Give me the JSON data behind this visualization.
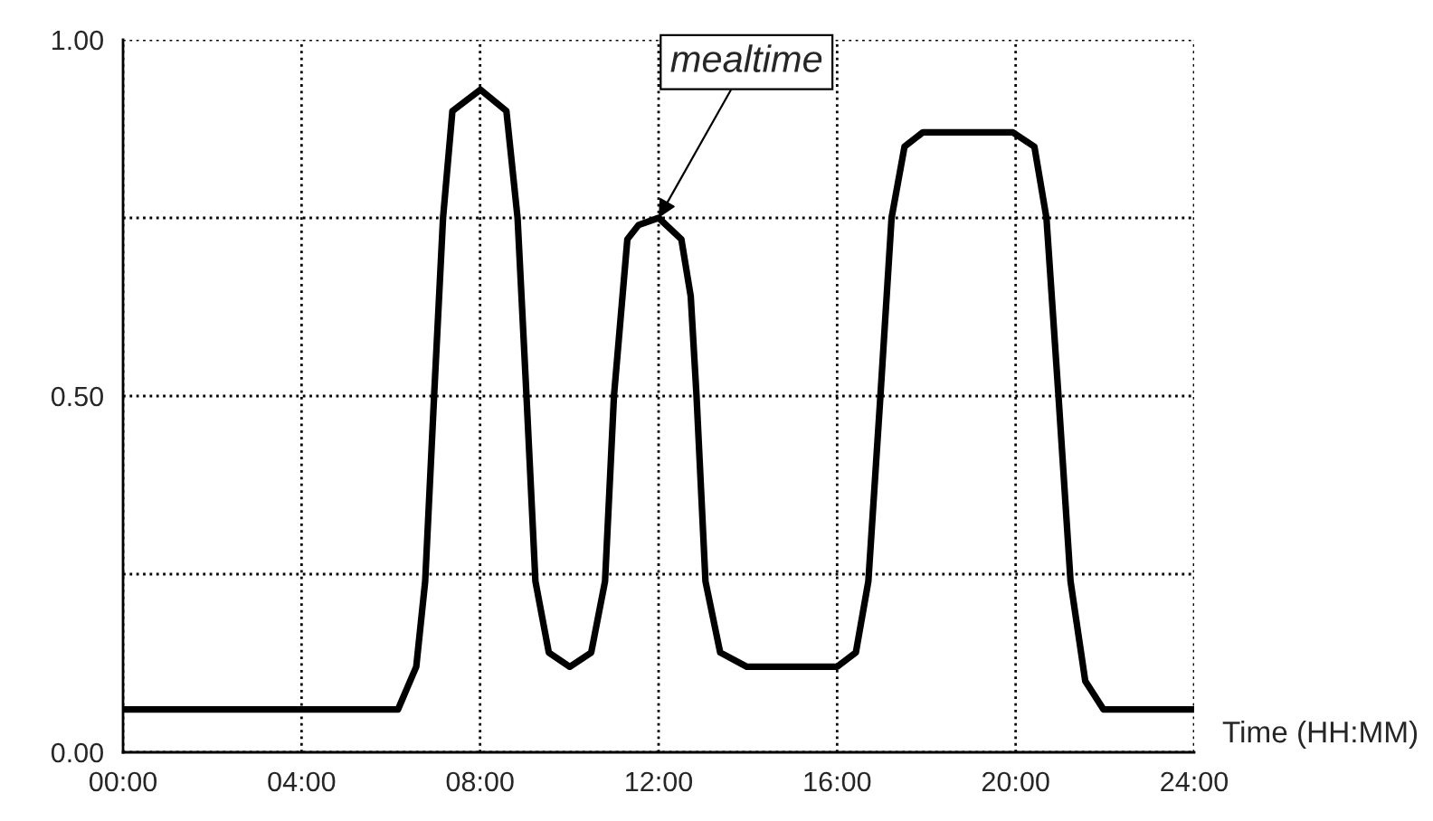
{
  "chart_data": {
    "type": "line",
    "xlabel": "Time (HH:MM)",
    "x": [
      0,
      6.16,
      6.57,
      6.77,
      6.97,
      7.17,
      7.38,
      8.01,
      8.59,
      8.84,
      9.04,
      9.24,
      9.54,
      10.01,
      10.49,
      10.8,
      11.0,
      11.3,
      11.55,
      12.0,
      12.51,
      12.72,
      12.85,
      13.05,
      13.38,
      13.98,
      16.0,
      16.42,
      16.7,
      16.97,
      17.22,
      17.51,
      17.92,
      19.94,
      20.42,
      20.69,
      20.96,
      21.23,
      21.56,
      21.97,
      24
    ],
    "series": [
      {
        "color": "#000000",
        "values": [
          0.06,
          0.06,
          0.12,
          0.24,
          0.5,
          0.75,
          0.9,
          0.93,
          0.9,
          0.75,
          0.5,
          0.24,
          0.14,
          0.12,
          0.14,
          0.24,
          0.5,
          0.72,
          0.74,
          0.75,
          0.72,
          0.64,
          0.5,
          0.24,
          0.14,
          0.12,
          0.12,
          0.14,
          0.24,
          0.5,
          0.75,
          0.85,
          0.87,
          0.87,
          0.85,
          0.75,
          0.5,
          0.24,
          0.1,
          0.06,
          0.06
        ]
      }
    ],
    "xlim": [
      0,
      24
    ],
    "ylim": [
      0,
      1
    ],
    "xticks": [
      {
        "value": 0,
        "label": "00:00"
      },
      {
        "value": 4,
        "label": "04:00"
      },
      {
        "value": 8,
        "label": "08:00"
      },
      {
        "value": 12,
        "label": "12:00"
      },
      {
        "value": 16,
        "label": "16:00"
      },
      {
        "value": 20,
        "label": "20:00"
      },
      {
        "value": 24,
        "label": "24:00"
      }
    ],
    "yticks": [
      {
        "value": 0,
        "label": "0.00"
      },
      {
        "value": 0.25,
        "label": null
      },
      {
        "value": 0.5,
        "label": "0.50"
      },
      {
        "value": 0.75,
        "label": null
      },
      {
        "value": 1,
        "label": "1.00"
      }
    ],
    "grid": true,
    "line_style": "solid",
    "annotations": [
      {
        "text": "mealtime",
        "x": 12.0,
        "y": 0.75
      }
    ]
  }
}
